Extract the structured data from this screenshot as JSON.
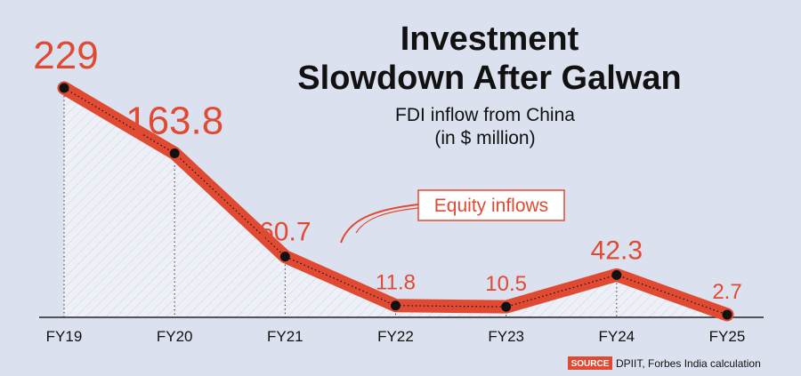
{
  "chart_data": {
    "type": "line",
    "title": "Investment Slowdown After Galwan",
    "title_lines": [
      "Investment",
      "Slowdown After Galwan"
    ],
    "subtitle": "FDI inflow from China (in $ million)",
    "subtitle_lines": [
      "FDI inflow from China",
      "(in $ million)"
    ],
    "xlabel": "",
    "ylabel": "",
    "categories": [
      "FY19",
      "FY20",
      "FY21",
      "FY22",
      "FY23",
      "FY24",
      "FY25"
    ],
    "series": [
      {
        "name": "Equity inflows",
        "values": [
          229,
          163.8,
          60.7,
          11.8,
          10.5,
          42.3,
          2.7
        ],
        "labels": [
          "229",
          "163.8",
          "60.7",
          "11.8",
          "10.5",
          "42.3",
          "2.7"
        ]
      }
    ],
    "ylim": [
      0,
      229
    ],
    "grid": false,
    "legend": "callout",
    "colors": {
      "line": "#e04a32",
      "marker": "#111111",
      "background": "#dce1ef",
      "area": "#eef0f7",
      "text": "#111111",
      "source_tag": "#e04a32"
    },
    "source_label": "SOURCE",
    "source_text": "DPIIT, Forbes India calculation"
  }
}
